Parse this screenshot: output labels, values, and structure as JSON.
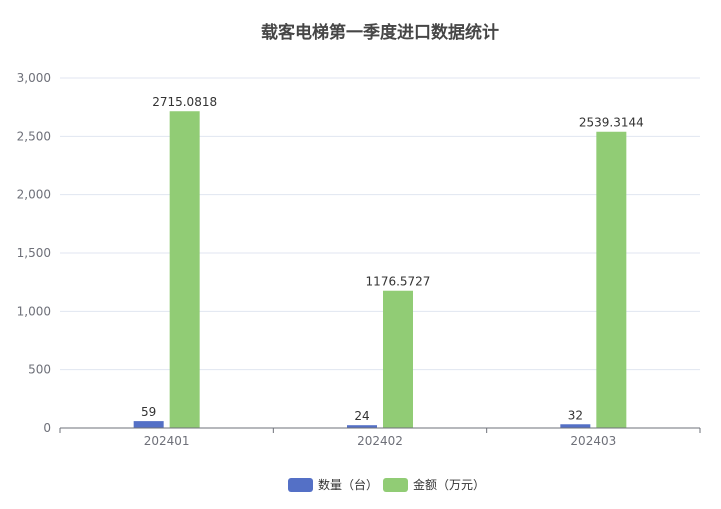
{
  "chart_data": {
    "type": "bar",
    "title": "载客电梯第一季度进口数据统计",
    "categories": [
      "202401",
      "202402",
      "202403"
    ],
    "series": [
      {
        "name": "数量（台）",
        "color": "#5470c6",
        "values": [
          59,
          24,
          32
        ],
        "labels": [
          "59",
          "24",
          "32"
        ]
      },
      {
        "name": "金额（万元）",
        "color": "#91cc75",
        "values": [
          2715.0818,
          1176.5727,
          2539.3144
        ],
        "labels": [
          "2715.0818",
          "1176.5727",
          "2539.3144"
        ]
      }
    ],
    "ylim": [
      0,
      3000
    ],
    "yticks": [
      0,
      500,
      1000,
      1500,
      2000,
      2500,
      3000
    ],
    "ytick_labels": [
      "0",
      "500",
      "1,000",
      "1,500",
      "2,000",
      "2,500",
      "3,000"
    ],
    "xlabel": "",
    "ylabel": "",
    "grid": true,
    "legend": "bottom-center"
  }
}
